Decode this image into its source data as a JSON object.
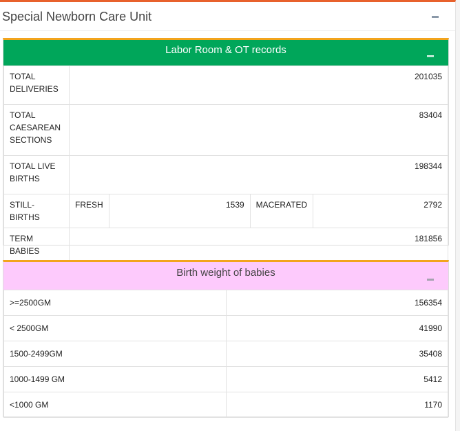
{
  "outer": {
    "title": "Special Newborn Care Unit"
  },
  "labor": {
    "title": "Labor Room & OT records",
    "rows": [
      {
        "label_lines": [
          "TOTAL",
          "DELIVERIES"
        ],
        "value": "201035"
      },
      {
        "label_lines": [
          "TOTAL",
          "CAESAREAN",
          "SECTIONS"
        ],
        "value": "83404"
      },
      {
        "label_lines": [
          "TOTAL LIVE",
          "BIRTHS"
        ],
        "value": "198344"
      }
    ],
    "still": {
      "label": "STILL-BIRTHS",
      "fresh_label": "FRESH",
      "fresh_value": "1539",
      "macerated_label": "MACERATED",
      "macerated_value": "2792"
    },
    "term": {
      "label": "TERM BABIES",
      "value": "181856"
    }
  },
  "birth": {
    "title": "Birth weight of babies",
    "rows": [
      {
        "label": ">=2500GM",
        "value": "156354"
      },
      {
        "label": "< 2500GM",
        "value": "41990"
      },
      {
        "label": "1500-2499GM",
        "value": "35408"
      },
      {
        "label": "1000-1499 GM",
        "value": "5412"
      },
      {
        "label": "<1000 GM",
        "value": "1170"
      }
    ]
  }
}
